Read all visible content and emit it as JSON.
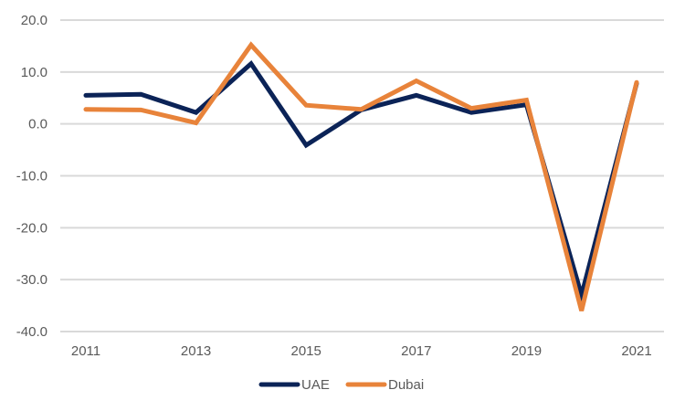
{
  "chart_data": {
    "type": "line",
    "title": "",
    "xlabel": "",
    "ylabel": "",
    "x": [
      2011,
      2012,
      2013,
      2014,
      2015,
      2016,
      2017,
      2018,
      2019,
      2020,
      2021
    ],
    "x_tick_labels": [
      "2011",
      "2013",
      "2015",
      "2017",
      "2019",
      "2021"
    ],
    "y_tick_labels": [
      "20.0",
      "10.0",
      "0.0",
      "-10.0",
      "-20.0",
      "-30.0",
      "-40.0"
    ],
    "ylim": [
      -40,
      20
    ],
    "y_ticks": [
      20,
      10,
      0,
      -10,
      -20,
      -30,
      -40
    ],
    "grid": "horizontal",
    "legend_position": "bottom",
    "series": [
      {
        "name": "UAE",
        "color": "#0b2357",
        "values": [
          5.5,
          5.7,
          2.2,
          11.6,
          -4.1,
          2.7,
          5.5,
          2.2,
          3.7,
          -33.0,
          7.8
        ]
      },
      {
        "name": "Dubai",
        "color": "#e8833a",
        "values": [
          2.8,
          2.7,
          0.2,
          15.2,
          3.6,
          2.8,
          8.3,
          3.0,
          4.6,
          -36.0,
          8.0
        ]
      }
    ]
  }
}
